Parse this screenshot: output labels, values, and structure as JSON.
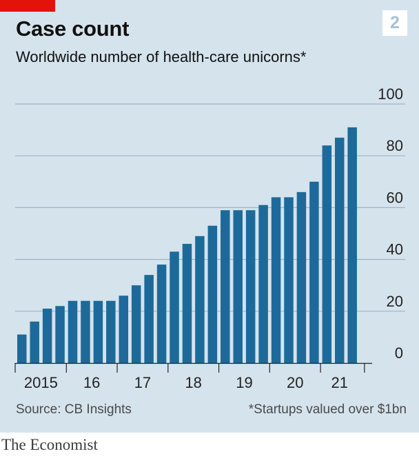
{
  "header": {
    "title": "Case count",
    "chart_number": "2",
    "subtitle": "Worldwide number of health-care unicorns*"
  },
  "footer": {
    "source": "Source: CB Insights",
    "footnote": "*Startups valued over $1bn",
    "brand": "The Economist"
  },
  "colors": {
    "bar": "#1d6a9a",
    "gridline": "#9fb4c2",
    "background": "#d5e3ec",
    "brand_red": "#e3120b"
  },
  "chart_data": {
    "type": "bar",
    "title": "Case count",
    "subtitle": "Worldwide number of health-care unicorns*",
    "xlabel": "",
    "ylabel": "",
    "ylim": [
      0,
      100
    ],
    "yticks": [
      0,
      20,
      40,
      60,
      80,
      100
    ],
    "y_axis_side": "right",
    "grid": true,
    "x_tick_labels": [
      "2015",
      "16",
      "17",
      "18",
      "19",
      "20",
      "21"
    ],
    "x_period": "quarterly, 2015 Q1 to 2021 Q3",
    "values": [
      11,
      16,
      21,
      22,
      24,
      24,
      24,
      24,
      26,
      30,
      34,
      38,
      43,
      46,
      49,
      53,
      59,
      59,
      59,
      61,
      64,
      64,
      66,
      70,
      84,
      87,
      91
    ]
  }
}
